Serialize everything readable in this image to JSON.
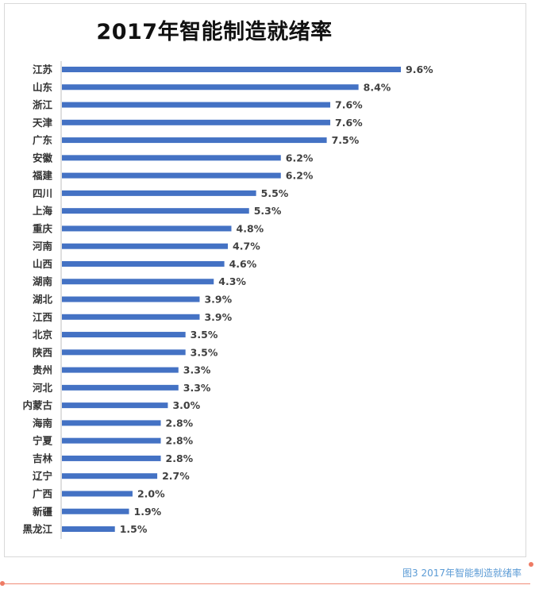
{
  "chart_data": {
    "type": "bar",
    "orientation": "horizontal",
    "title": "2017年智能制造就绪率",
    "categories": [
      "江苏",
      "山东",
      "浙江",
      "天津",
      "广东",
      "安徽",
      "福建",
      "四川",
      "上海",
      "重庆",
      "河南",
      "山西",
      "湖南",
      "湖北",
      "江西",
      "北京",
      "陕西",
      "贵州",
      "河北",
      "内蒙古",
      "海南",
      "宁夏",
      "吉林",
      "辽宁",
      "广西",
      "新疆",
      "黑龙江"
    ],
    "values": [
      9.6,
      8.4,
      7.6,
      7.6,
      7.5,
      6.2,
      6.2,
      5.5,
      5.3,
      4.8,
      4.7,
      4.6,
      4.3,
      3.9,
      3.9,
      3.5,
      3.5,
      3.3,
      3.3,
      3.0,
      2.8,
      2.8,
      2.8,
      2.7,
      2.0,
      1.9,
      1.5
    ],
    "value_labels": [
      "9.6%",
      "8.4%",
      "7.6%",
      "7.6%",
      "7.5%",
      "6.2%",
      "6.2%",
      "5.5%",
      "5.3%",
      "4.8%",
      "4.7%",
      "4.6%",
      "4.3%",
      "3.9%",
      "3.9%",
      "3.5%",
      "3.5%",
      "3.3%",
      "3.3%",
      "3.0%",
      "2.8%",
      "2.8%",
      "2.8%",
      "2.7%",
      "2.0%",
      "1.9%",
      "1.5%"
    ],
    "unit": "%",
    "xlim": [
      0,
      10
    ],
    "grid": false,
    "legend": "none",
    "bar_color": "#4472c4"
  },
  "caption": "图3   2017年智能制造就绪率",
  "colors": {
    "caption": "#5b9bd5",
    "accent": "#ee7b64"
  }
}
